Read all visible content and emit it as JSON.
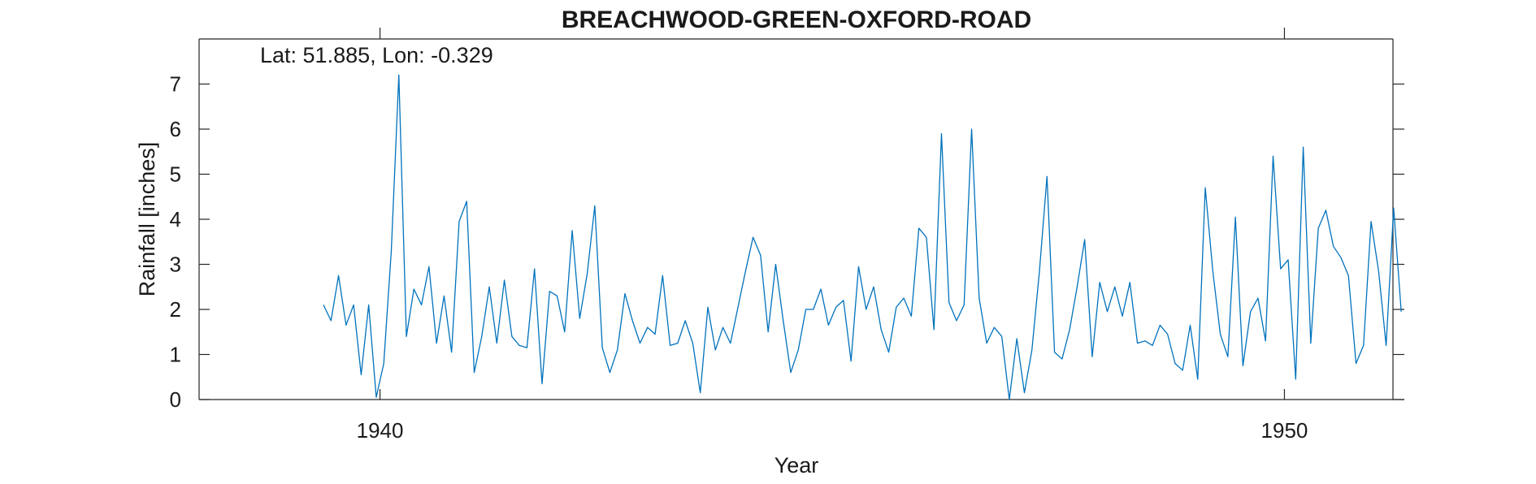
{
  "chart_data": {
    "type": "line",
    "title": "BREACHWOOD-GREEN-OXFORD-ROAD",
    "annotation": "Lat: 51.885, Lon: -0.329",
    "xlabel": "Year",
    "ylabel": "Rainfall [inches]",
    "xlim": [
      1938.0,
      1951.2
    ],
    "ylim": [
      0,
      8
    ],
    "xticks": [
      1940,
      1950
    ],
    "yticks": [
      0,
      1,
      2,
      3,
      4,
      5,
      6,
      7
    ],
    "grid": false,
    "series_color": "#0072BD",
    "x_start": 1939.375,
    "x_step": 0.08333,
    "series": [
      {
        "values": [
          2.1,
          1.75,
          2.75,
          1.65,
          2.1,
          0.55,
          2.1,
          0.05,
          0.8,
          3.3,
          7.2,
          1.4,
          2.45,
          2.1,
          2.95,
          1.25,
          2.3,
          1.05,
          3.95,
          4.4,
          0.6,
          1.4,
          2.5,
          1.25,
          2.65,
          1.4,
          1.2,
          1.15,
          2.9,
          0.35,
          2.4,
          2.3,
          1.5,
          3.75,
          1.8,
          2.8,
          4.3,
          1.15,
          0.6,
          1.1,
          2.35,
          1.75,
          1.25,
          1.6,
          1.45,
          2.75,
          1.2,
          1.25,
          1.75,
          1.25,
          0.15,
          2.05,
          1.1,
          1.6,
          1.25,
          2.05,
          2.85,
          3.6,
          3.2,
          1.5,
          3.0,
          1.75,
          0.6,
          1.1,
          2.0,
          2.0,
          2.45,
          1.65,
          2.05,
          2.2,
          0.85,
          2.95,
          2.0,
          2.5,
          1.55,
          1.05,
          2.05,
          2.25,
          1.85,
          3.8,
          3.6,
          1.55,
          5.9,
          2.15,
          1.75,
          2.1,
          6.0,
          2.25,
          1.25,
          1.6,
          1.4,
          0.0,
          1.35,
          0.15,
          1.1,
          2.85,
          4.95,
          1.05,
          0.9,
          1.55,
          2.5,
          3.55,
          0.95,
          2.6,
          1.95,
          2.5,
          1.85,
          2.6,
          1.25,
          1.3,
          1.2,
          1.65,
          1.45,
          0.8,
          0.65,
          1.65,
          0.45,
          4.7,
          2.85,
          1.45,
          0.95,
          4.05,
          0.75,
          1.95,
          2.25,
          1.3,
          5.4,
          2.9,
          3.1,
          0.45,
          5.6,
          1.25,
          3.8,
          4.2,
          3.4,
          3.15,
          2.75,
          0.8,
          1.2,
          3.95,
          2.85,
          1.2,
          4.25,
          1.95
        ]
      }
    ]
  }
}
